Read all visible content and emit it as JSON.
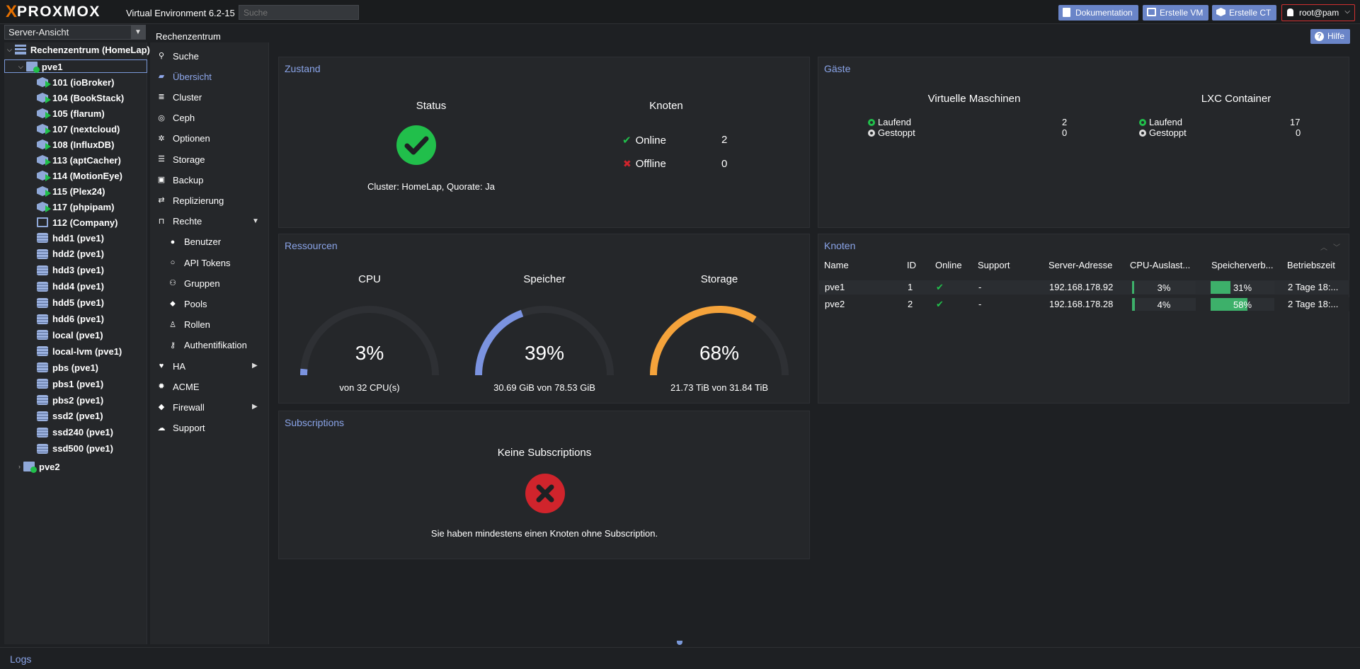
{
  "header": {
    "brand_prefix": "X",
    "brand_name": "PROXMOX",
    "version": "Virtual Environment 6.2-15",
    "search_placeholder": "Suche",
    "btn_docs": "Dokumentation",
    "btn_create_vm": "Erstelle VM",
    "btn_create_ct": "Erstelle CT",
    "user": "root@pam"
  },
  "view_select": "Server-Ansicht",
  "breadcrumb": "Rechenzentrum",
  "help_button": "Hilfe",
  "tree": {
    "datacenter": "Rechenzentrum (HomeLap)",
    "node1": "pve1",
    "items": [
      {
        "label": "101 (ioBroker)",
        "type": "ct"
      },
      {
        "label": "104 (BookStack)",
        "type": "ct"
      },
      {
        "label": "105 (flarum)",
        "type": "ct"
      },
      {
        "label": "107 (nextcloud)",
        "type": "ct"
      },
      {
        "label": "108 (InfluxDB)",
        "type": "ct"
      },
      {
        "label": "113 (aptCacher)",
        "type": "ct"
      },
      {
        "label": "114 (MotionEye)",
        "type": "ct"
      },
      {
        "label": "115 (Plex24)",
        "type": "ct"
      },
      {
        "label": "117 (phpipam)",
        "type": "ct"
      },
      {
        "label": "112 (Company)",
        "type": "vm"
      },
      {
        "label": "hdd1 (pve1)",
        "type": "storage"
      },
      {
        "label": "hdd2 (pve1)",
        "type": "storage"
      },
      {
        "label": "hdd3 (pve1)",
        "type": "storage"
      },
      {
        "label": "hdd4 (pve1)",
        "type": "storage"
      },
      {
        "label": "hdd5 (pve1)",
        "type": "storage"
      },
      {
        "label": "hdd6 (pve1)",
        "type": "storage"
      },
      {
        "label": "local (pve1)",
        "type": "storage"
      },
      {
        "label": "local-lvm (pve1)",
        "type": "storage"
      },
      {
        "label": "pbs (pve1)",
        "type": "storage"
      },
      {
        "label": "pbs1 (pve1)",
        "type": "storage"
      },
      {
        "label": "pbs2 (pve1)",
        "type": "storage"
      },
      {
        "label": "ssd2 (pve1)",
        "type": "storage"
      },
      {
        "label": "ssd240 (pve1)",
        "type": "storage"
      },
      {
        "label": "ssd500 (pve1)",
        "type": "storage"
      }
    ],
    "node2": "pve2"
  },
  "menu": [
    {
      "label": "Suche",
      "icon": "search-icon",
      "glyph": "⚲"
    },
    {
      "label": "Übersicht",
      "icon": "book-icon",
      "glyph": "▰",
      "active": true
    },
    {
      "label": "Cluster",
      "icon": "server-icon",
      "glyph": "≣"
    },
    {
      "label": "Ceph",
      "icon": "ceph-icon",
      "glyph": "◎"
    },
    {
      "label": "Optionen",
      "icon": "gear-icon",
      "glyph": "✲"
    },
    {
      "label": "Storage",
      "icon": "database-icon",
      "glyph": "☰"
    },
    {
      "label": "Backup",
      "icon": "floppy-icon",
      "glyph": "▣"
    },
    {
      "label": "Replizierung",
      "icon": "retweet-icon",
      "glyph": "⇄"
    },
    {
      "label": "Rechte",
      "icon": "unlock-icon",
      "glyph": "⊓",
      "arrow": "▼"
    },
    {
      "label": "Benutzer",
      "icon": "user-icon",
      "glyph": "●",
      "sub": true
    },
    {
      "label": "API Tokens",
      "icon": "user-outline-icon",
      "glyph": "○",
      "sub": true
    },
    {
      "label": "Gruppen",
      "icon": "users-icon",
      "glyph": "⚇",
      "sub": true
    },
    {
      "label": "Pools",
      "icon": "tags-icon",
      "glyph": "⬥",
      "sub": true
    },
    {
      "label": "Rollen",
      "icon": "male-icon",
      "glyph": "♙",
      "sub": true
    },
    {
      "label": "Authentifikation",
      "icon": "key-icon",
      "glyph": "⚷",
      "sub": true
    },
    {
      "label": "HA",
      "icon": "heartbeat-icon",
      "glyph": "♥",
      "arrow": "▶"
    },
    {
      "label": "ACME",
      "icon": "certificate-icon",
      "glyph": "✹"
    },
    {
      "label": "Firewall",
      "icon": "shield-icon",
      "glyph": "◆",
      "arrow": "▶"
    },
    {
      "label": "Support",
      "icon": "comments-icon",
      "glyph": "☁"
    }
  ],
  "zustand": {
    "title": "Zustand",
    "status_heading": "Status",
    "cluster_text": "Cluster: HomeLap, Quorate: Ja",
    "knoten_heading": "Knoten",
    "online_label": "Online",
    "online_count": "2",
    "offline_label": "Offline",
    "offline_count": "0"
  },
  "gaeste": {
    "title": "Gäste",
    "vm_heading": "Virtuelle Maschinen",
    "lxc_heading": "LXC Container",
    "running_label": "Laufend",
    "stopped_label": "Gestoppt",
    "vm_running": "2",
    "vm_stopped": "0",
    "lxc_running": "17",
    "lxc_stopped": "0"
  },
  "ressourcen": {
    "title": "Ressourcen",
    "gauges": [
      {
        "label": "CPU",
        "value": "3%",
        "fraction": 0.03,
        "sub": "von 32 CPU(s)",
        "color": "#7b93e0"
      },
      {
        "label": "Speicher",
        "value": "39%",
        "fraction": 0.39,
        "sub": "30.69 GiB von 78.53 GiB",
        "color": "#7b93e0"
      },
      {
        "label": "Storage",
        "value": "68%",
        "fraction": 0.68,
        "sub": "21.73 TiB von 31.84 TiB",
        "color": "#f5a33b"
      }
    ]
  },
  "knoten": {
    "title": "Knoten",
    "columns": [
      "Name",
      "ID",
      "Online",
      "Support",
      "Server-Adresse",
      "CPU-Auslast...",
      "Speicherverb...",
      "Betriebszeit"
    ],
    "rows": [
      {
        "name": "pve1",
        "id": "1",
        "online": "✔",
        "support": "-",
        "address": "192.168.178.92",
        "cpu": "3%",
        "cpu_fraction": 0.03,
        "mem": "31%",
        "mem_fraction": 0.31,
        "uptime": "2 Tage 18:..."
      },
      {
        "name": "pve2",
        "id": "2",
        "online": "✔",
        "support": "-",
        "address": "192.168.178.28",
        "cpu": "4%",
        "cpu_fraction": 0.04,
        "mem": "58%",
        "mem_fraction": 0.58,
        "uptime": "2 Tage 18:..."
      }
    ]
  },
  "subscriptions": {
    "title": "Subscriptions",
    "heading": "Keine Subscriptions",
    "message": "Sie haben mindestens einen Knoten ohne Subscription."
  },
  "logs_label": "Logs",
  "colors": {
    "accent": "#6a85c8",
    "ok_green": "#21bf4b",
    "error_red": "#d0242c",
    "title_blue": "#8aa4e8",
    "storage_orange": "#f5a33b"
  }
}
